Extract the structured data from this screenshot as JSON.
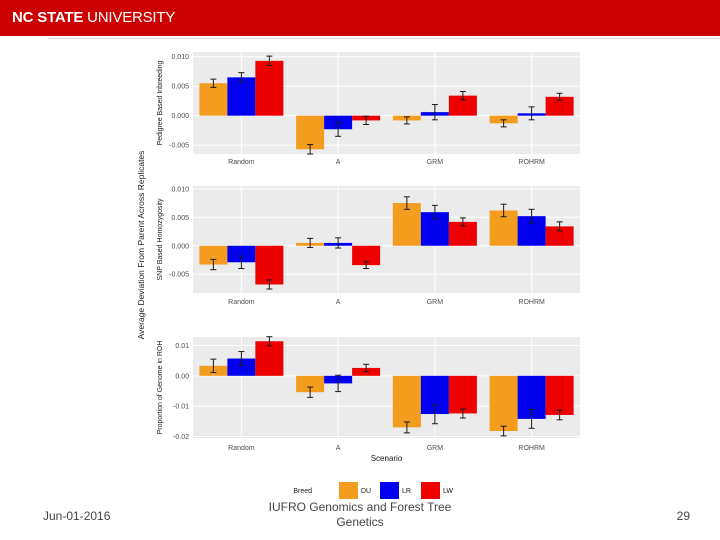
{
  "header": {
    "brand_bold": "NC STATE",
    "brand_rest": " UNIVERSITY"
  },
  "footer": {
    "date": "Jun-01-2016",
    "title": "IUFRO Genomics and Forest Tree Genetics",
    "page": "29"
  },
  "colors": {
    "banner": "#cc0000",
    "DU": "#f39c1e",
    "LR": "#0000ee",
    "LW": "#ee0000"
  },
  "chart_data": {
    "type": "bar",
    "title": "",
    "xlabel": "Scenario",
    "ylabel": "Average Deviation From Parent Across Replicates",
    "categories": [
      "Random",
      "A",
      "GRM",
      "ROHRM"
    ],
    "legend": {
      "title": "Breed",
      "entries": [
        "DU",
        "LR",
        "LW"
      ],
      "placement": "bottom"
    },
    "panels": [
      {
        "ylabel": "Pedigree Based Inbreeding",
        "ylim": [
          -0.0065,
          0.0108
        ],
        "ticks": [
          -0.005,
          0.0,
          0.005,
          0.01
        ],
        "tick_labels": [
          "-0.005",
          "0.000",
          "0.005",
          "0.010"
        ],
        "series": [
          {
            "name": "DU",
            "values": [
              0.0055,
              -0.0057,
              -0.0008,
              -0.0013
            ],
            "err": [
              0.0007,
              0.0008,
              0.0006,
              0.0006
            ]
          },
          {
            "name": "LR",
            "values": [
              0.0065,
              -0.0023,
              0.0006,
              0.0004
            ],
            "err": [
              0.0008,
              0.0012,
              0.0013,
              0.0011
            ]
          },
          {
            "name": "LW",
            "values": [
              0.0093,
              -0.0008,
              0.0034,
              0.0032
            ],
            "err": [
              0.0008,
              0.0007,
              0.0007,
              0.0006
            ]
          }
        ]
      },
      {
        "ylabel": "SNP Based Homozygosity",
        "ylim": [
          -0.0083,
          0.0105
        ],
        "ticks": [
          -0.005,
          0.0,
          0.005,
          0.01
        ],
        "tick_labels": [
          "-0.005",
          "0.000",
          "0.005",
          "0.010"
        ],
        "series": [
          {
            "name": "DU",
            "values": [
              -0.0033,
              0.0005,
              0.0075,
              0.0062
            ],
            "err": [
              0.0009,
              0.0008,
              0.0011,
              0.0011
            ]
          },
          {
            "name": "LR",
            "values": [
              -0.0029,
              0.0005,
              0.0059,
              0.0052
            ],
            "err": [
              0.0011,
              0.0009,
              0.0012,
              0.0012
            ]
          },
          {
            "name": "LW",
            "values": [
              -0.0068,
              -0.0034,
              0.0042,
              0.0034
            ],
            "err": [
              0.0008,
              0.0006,
              0.0007,
              0.0008
            ]
          }
        ]
      },
      {
        "ylabel": "Proportion of Genome in ROH",
        "ylim": [
          -0.0205,
          0.0128
        ],
        "ticks": [
          -0.02,
          -0.01,
          0.0,
          0.01
        ],
        "tick_labels": [
          "-0.02",
          "-0.01",
          "0.00",
          "0.01"
        ],
        "series": [
          {
            "name": "DU",
            "values": [
              0.0033,
              -0.0054,
              -0.017,
              -0.0182
            ],
            "err": [
              0.0022,
              0.0017,
              0.0018,
              0.0016
            ]
          },
          {
            "name": "LR",
            "values": [
              0.0057,
              -0.0025,
              -0.0126,
              -0.0142
            ],
            "err": [
              0.0023,
              0.0027,
              0.0032,
              0.0031
            ]
          },
          {
            "name": "LW",
            "values": [
              0.0114,
              0.0026,
              -0.0124,
              -0.0129
            ],
            "err": [
              0.0015,
              0.0012,
              0.0015,
              0.0016
            ]
          }
        ]
      }
    ]
  }
}
